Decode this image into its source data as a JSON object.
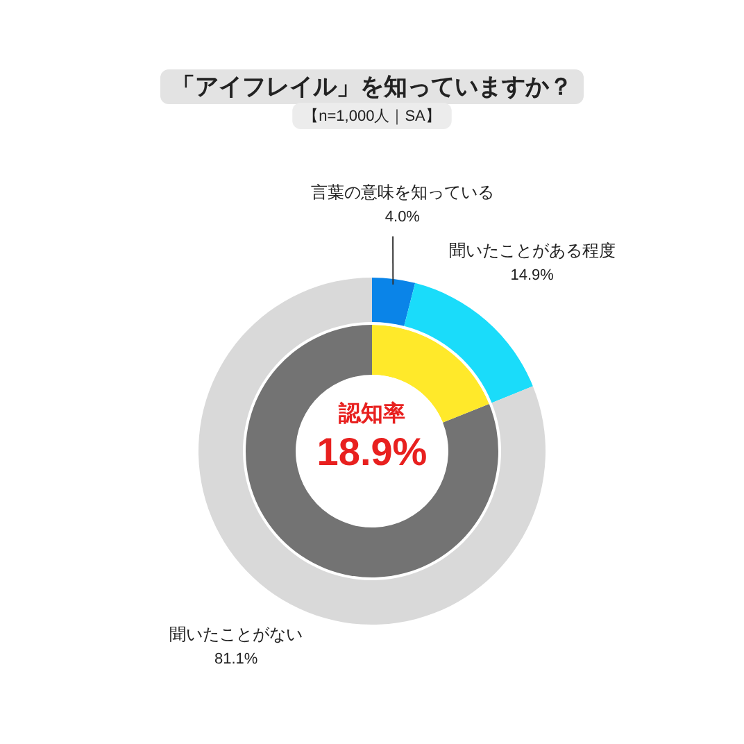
{
  "chart_data": [
    {
      "type": "donut",
      "title": "「アイフレイル」を知っていますか？",
      "subtitle": "【n=1,000人｜SA】",
      "categories": [
        "言葉の意味を知っている",
        "聞いたことがある程度",
        "聞いたことがない"
      ],
      "values": [
        4.0,
        14.9,
        81.1
      ],
      "colors": [
        "#0a84e8",
        "#1adcfa",
        "#d9d9d9"
      ],
      "value_labels": [
        "4.0%",
        "14.9%",
        "81.1%"
      ]
    },
    {
      "type": "donut",
      "categories": [
        "認知率",
        null
      ],
      "values": [
        18.9,
        81.1
      ],
      "colors": [
        "#ffe92a",
        "#737373"
      ],
      "value_labels": [
        "18.9%",
        null
      ]
    }
  ]
}
